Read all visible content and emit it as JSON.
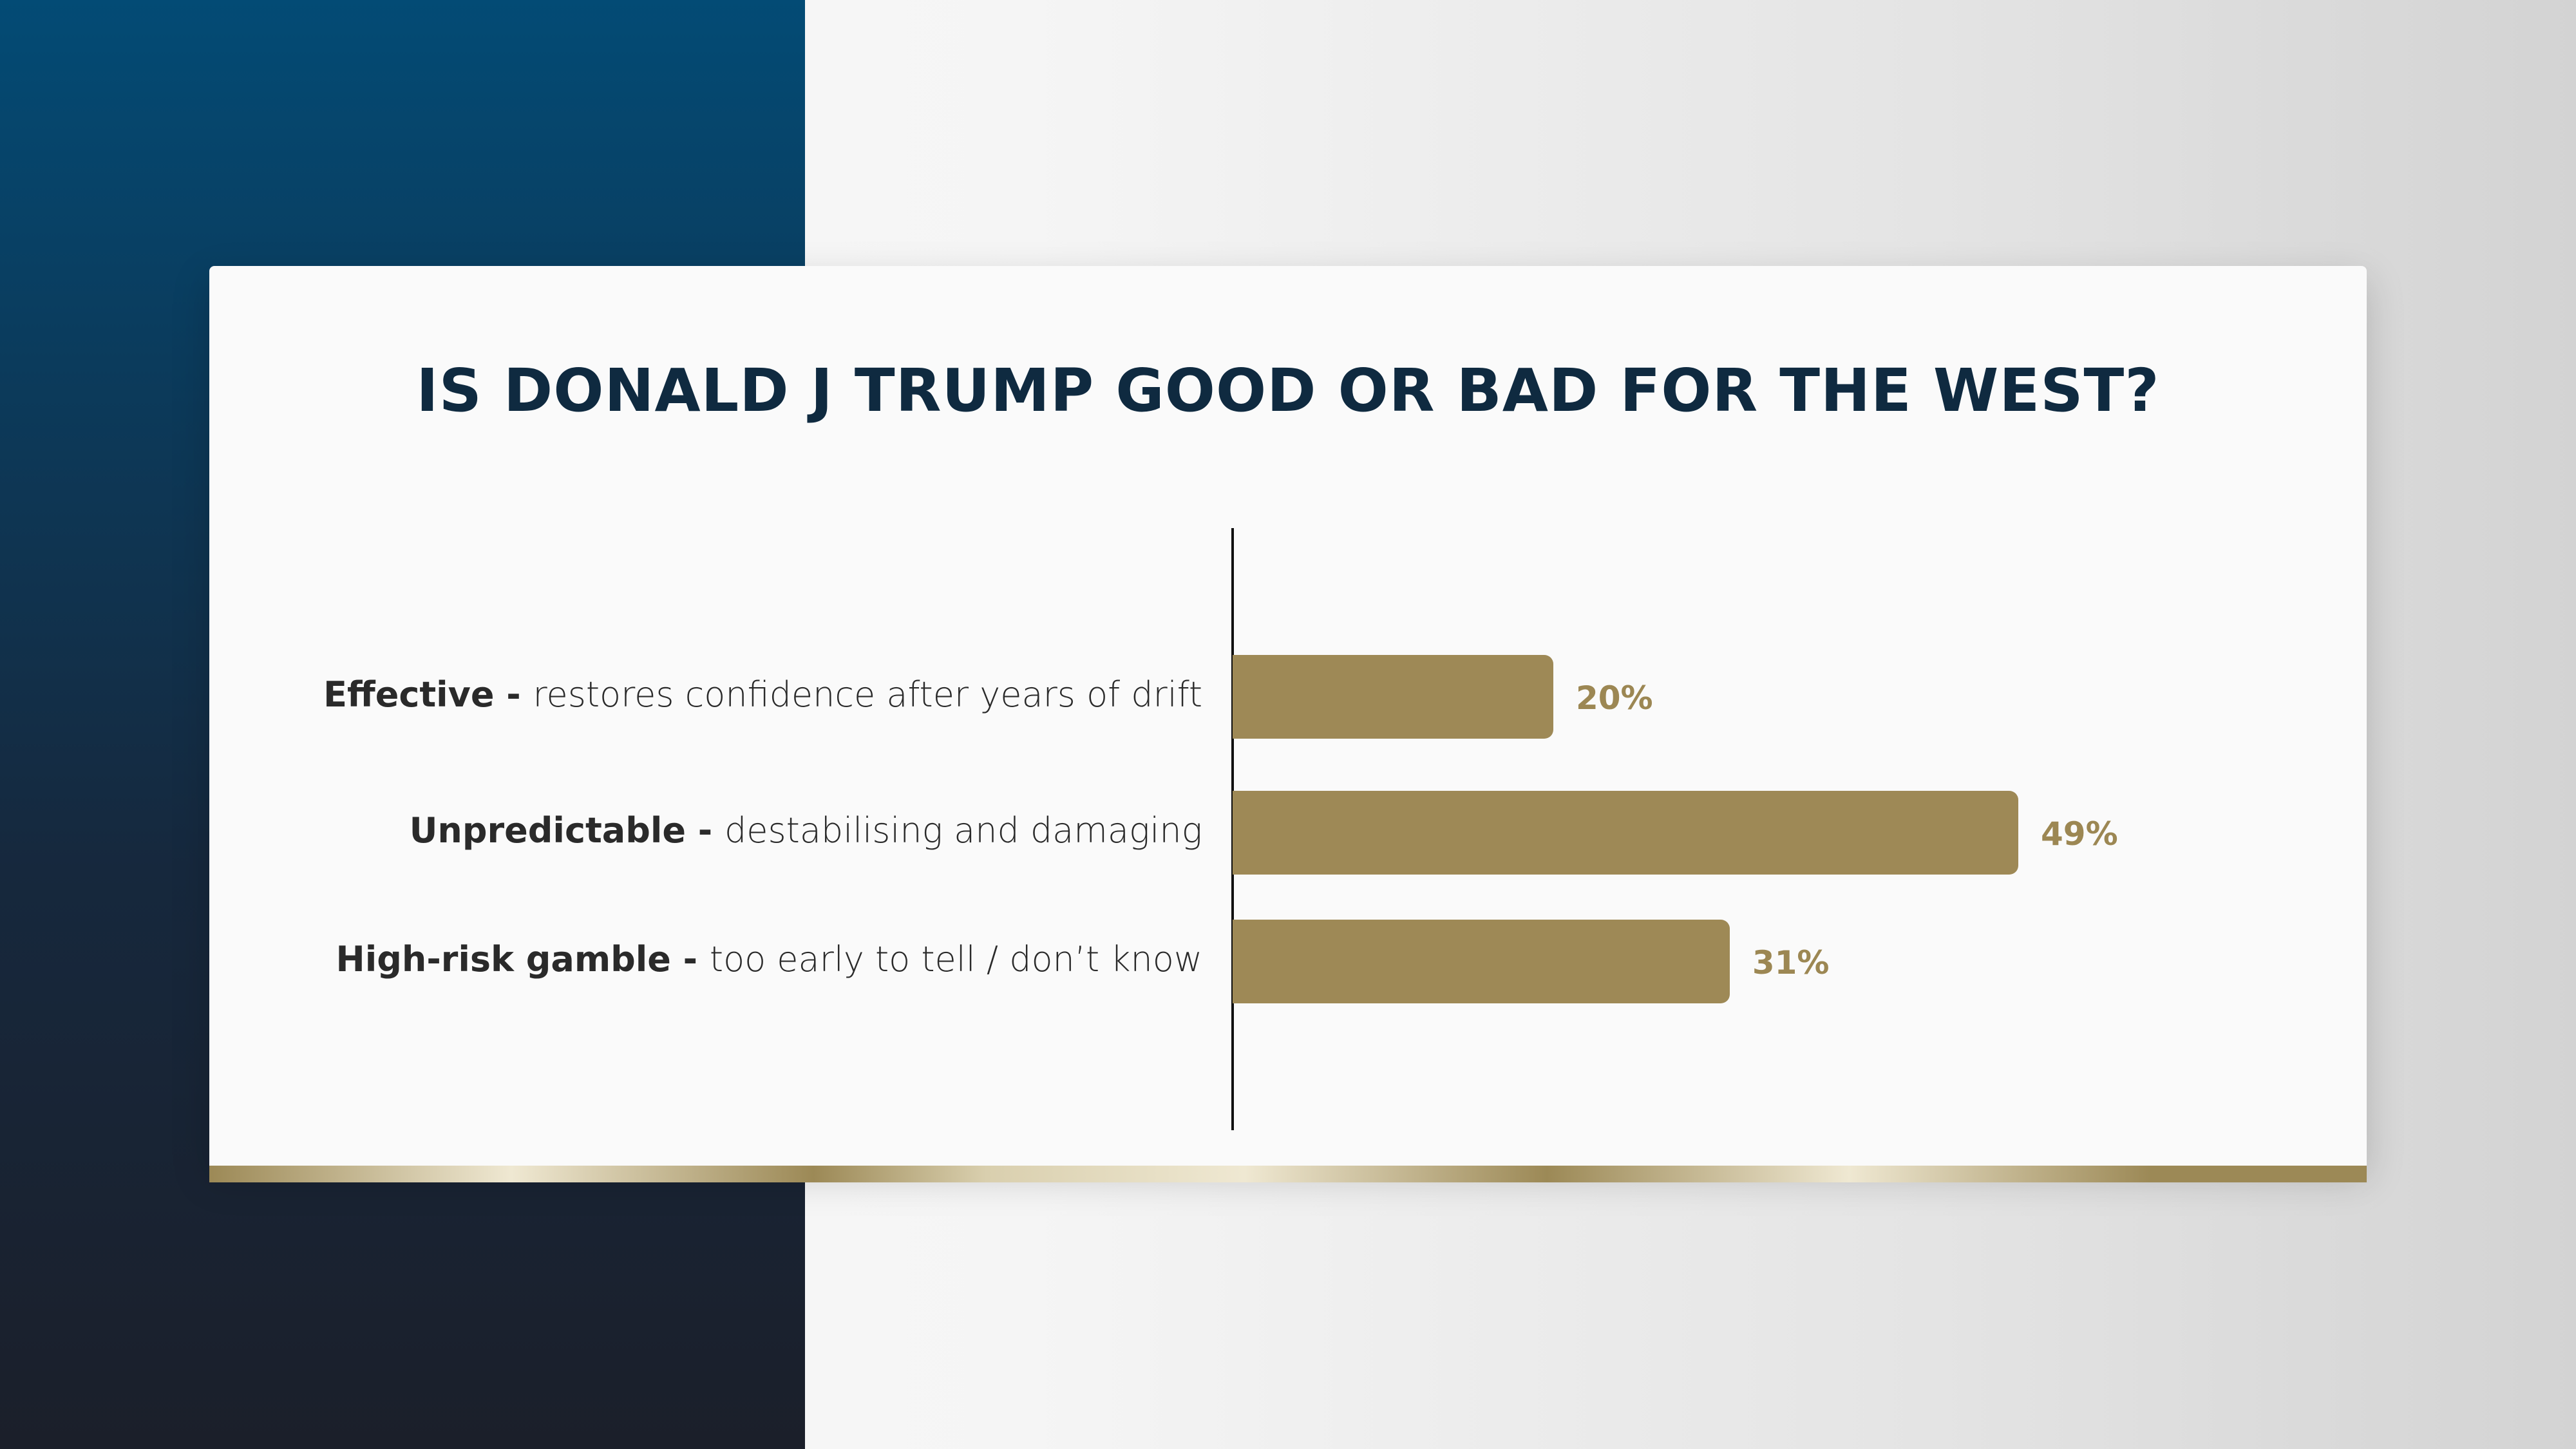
{
  "chart_data": {
    "type": "bar",
    "orientation": "horizontal",
    "title": "IS DONALD J TRUMP GOOD OR BAD FOR THE WEST?",
    "categories": [
      {
        "bold": "Effective",
        "sep": " - ",
        "rest": "restores confidence after years of drift"
      },
      {
        "bold": "Unpredictable",
        "sep": " - ",
        "rest": "destabilising and damaging"
      },
      {
        "bold": "High-risk gamble",
        "sep": " - ",
        "rest": "too early to tell / don’t know"
      }
    ],
    "values": [
      20,
      49,
      31
    ],
    "value_labels": [
      "20%",
      "49%",
      "31%"
    ],
    "xlim": [
      0,
      49
    ],
    "grid": false,
    "bar_color": "#9e8956",
    "title_color": "#0f2a40"
  }
}
